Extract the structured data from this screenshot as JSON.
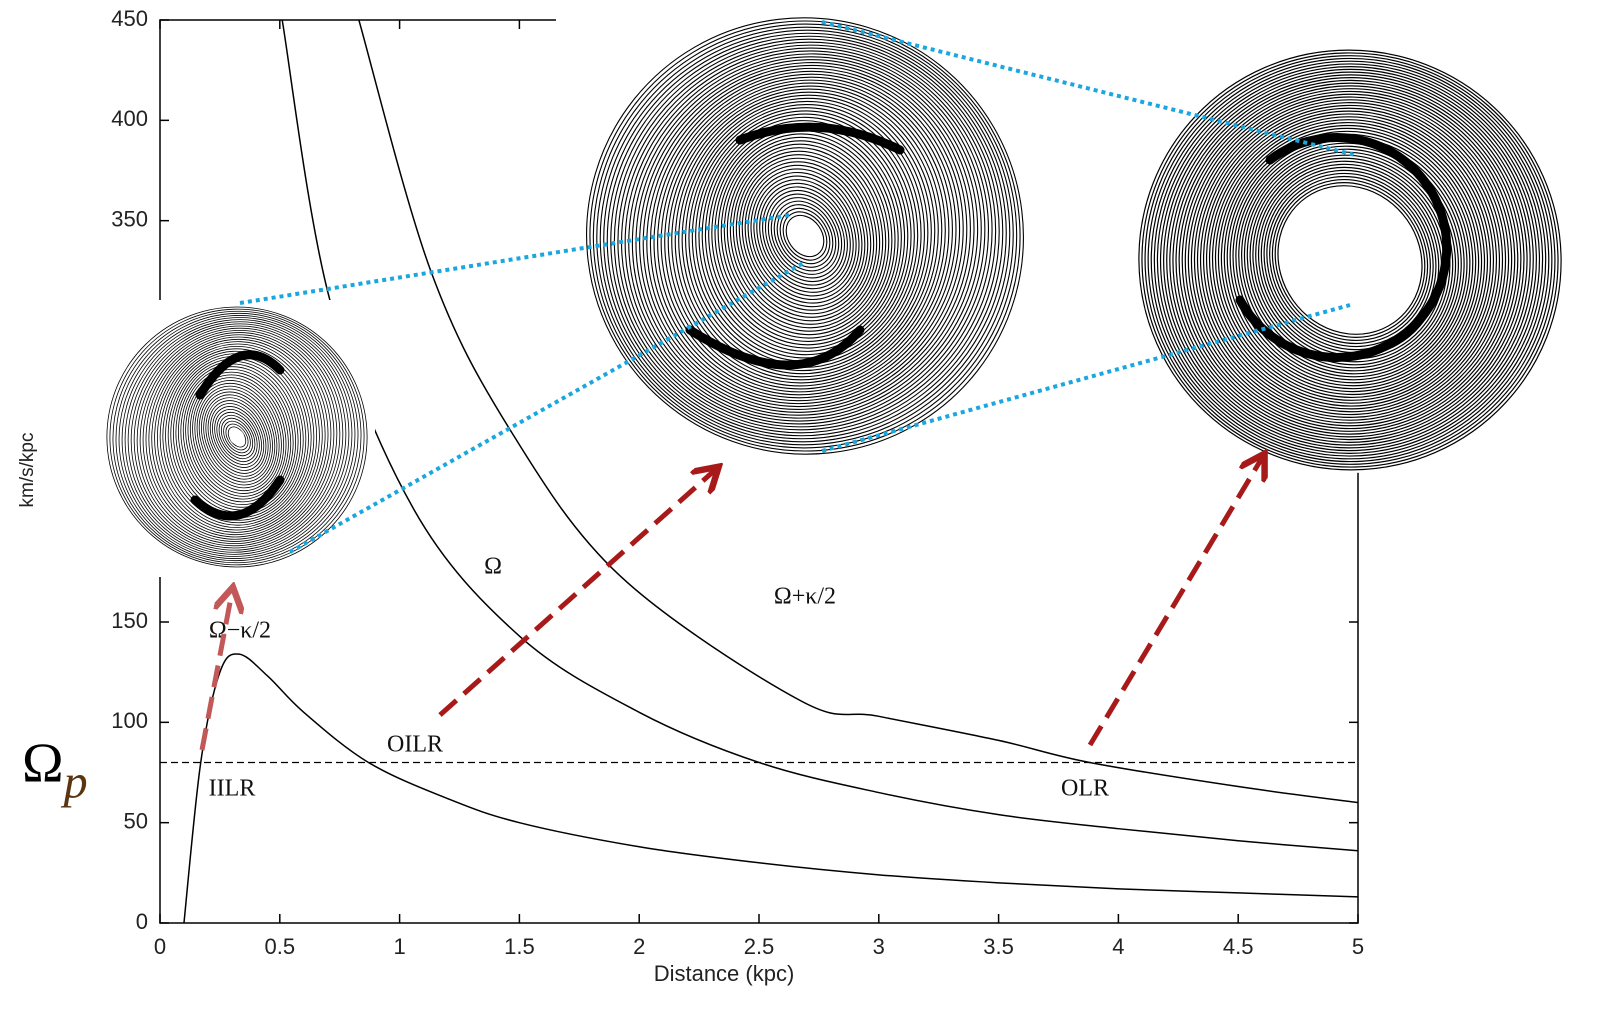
{
  "chart_data": {
    "type": "line",
    "xlabel": "Distance (kpc)",
    "ylabel": "km/s/kpc",
    "xlim": [
      0,
      5
    ],
    "ylim": [
      0,
      450
    ],
    "xticks": [
      0,
      0.5,
      1,
      1.5,
      2,
      2.5,
      3,
      3.5,
      4,
      4.5,
      5
    ],
    "yticks": [
      0,
      50,
      100,
      150,
      350,
      400,
      450
    ],
    "series": [
      {
        "name": "Ω−κ/2",
        "color": "#000000",
        "x": [
          0.1,
          0.17,
          0.25,
          0.33,
          0.45,
          0.6,
          0.87,
          1.2,
          1.5,
          2,
          2.5,
          3,
          3.5,
          4,
          4.5,
          5
        ],
        "values": [
          0,
          80,
          125,
          134,
          123,
          105,
          80,
          62,
          50,
          38,
          30,
          24,
          20,
          17,
          15,
          13
        ]
      },
      {
        "name": "Ω",
        "color": "#000000",
        "x": [
          0.51,
          0.71,
          1.06,
          1.5,
          2,
          2.5,
          3,
          3.5,
          4,
          4.5,
          5
        ],
        "values": [
          450,
          310,
          206,
          143,
          105,
          80,
          65,
          54,
          47,
          41,
          36
        ]
      },
      {
        "name": "Ω+κ/2",
        "color": "#000000",
        "x": [
          0.83,
          1.13,
          1.46,
          1.92,
          2.67,
          3,
          3.5,
          3.88,
          4.5,
          5
        ],
        "values": [
          450,
          325,
          246,
          173,
          111,
          103,
          91,
          80,
          68,
          60
        ]
      }
    ],
    "reference_line": {
      "value": 80,
      "label": "Ω",
      "label_sub": "p",
      "style": "dashed"
    },
    "annotations": [
      "OILR",
      "IILR",
      "OLR"
    ]
  }
}
